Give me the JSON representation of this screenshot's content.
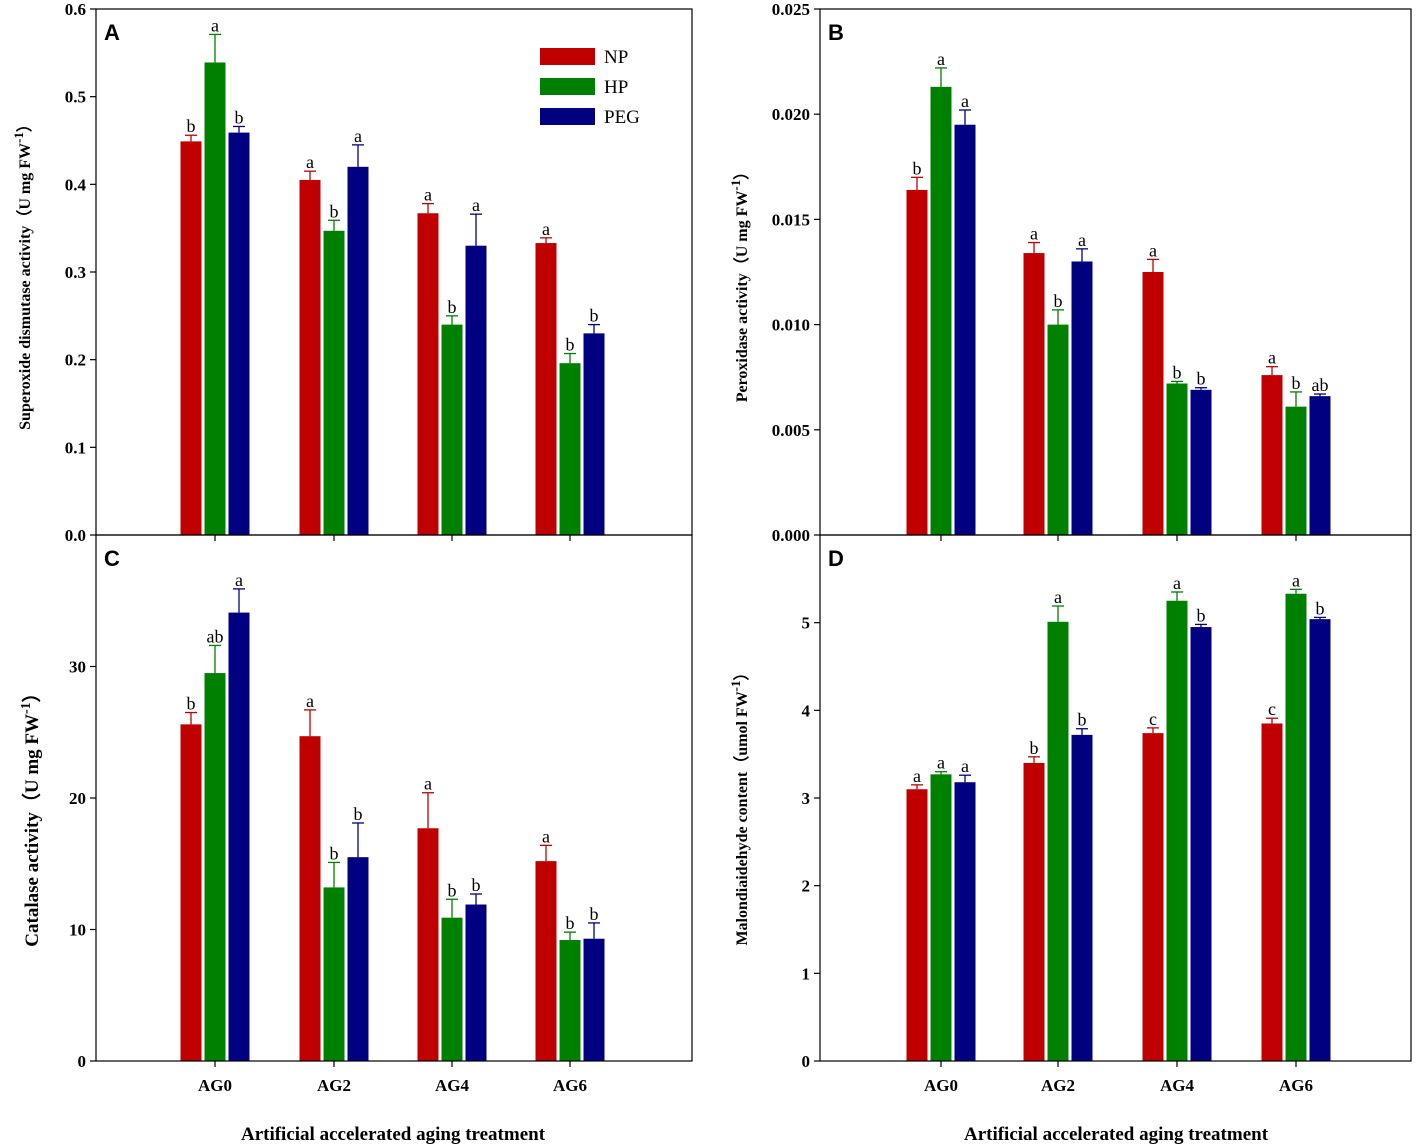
{
  "figure": {
    "shared_categories": [
      "AG0",
      "AG2",
      "AG4",
      "AG6"
    ],
    "x_axis_label": "Artificial accelerated aging treatment",
    "legend": [
      {
        "name": "NP",
        "color": "#c00000"
      },
      {
        "name": "HP",
        "color": "#008000"
      },
      {
        "name": "PEG",
        "color": "#000080"
      }
    ]
  },
  "chart_data": [
    {
      "id": "A",
      "type": "bar",
      "panel_label": "A",
      "title": "",
      "xlabel": "Artificial accelerated aging treatment",
      "ylabel": "Superoxide dismutase activity（U mg FW",
      "ylabel_sup": "-1",
      "ylabel_tail": "）",
      "categories": [
        "AG0",
        "AG2",
        "AG4",
        "AG6"
      ],
      "ylim": [
        0,
        0.6
      ],
      "yticks": [
        0.0,
        0.1,
        0.2,
        0.3,
        0.4,
        0.5,
        0.6
      ],
      "ytick_labels": [
        "0.0",
        "0.1",
        "0.2",
        "0.3",
        "0.4",
        "0.5",
        "0.6"
      ],
      "show_x_tick_labels": false,
      "legend": true,
      "series": [
        {
          "name": "NP",
          "color": "#c00000",
          "values": [
            0.449,
            0.405,
            0.367,
            0.333
          ],
          "errors": [
            0.007,
            0.01,
            0.011,
            0.006
          ],
          "letters": [
            "b",
            "a",
            "a",
            "a"
          ]
        },
        {
          "name": "HP",
          "color": "#008000",
          "values": [
            0.539,
            0.347,
            0.24,
            0.196
          ],
          "errors": [
            0.032,
            0.012,
            0.01,
            0.011
          ],
          "letters": [
            "a",
            "b",
            "b",
            "b"
          ]
        },
        {
          "name": "PEG",
          "color": "#000080",
          "values": [
            0.459,
            0.42,
            0.33,
            0.23
          ],
          "errors": [
            0.007,
            0.025,
            0.036,
            0.01
          ],
          "letters": [
            "b",
            "a",
            "a",
            "b"
          ]
        }
      ]
    },
    {
      "id": "B",
      "type": "bar",
      "panel_label": "B",
      "title": "",
      "xlabel": "Artificial accelerated aging treatment",
      "ylabel": "Peroxidase activity（U mg FW",
      "ylabel_sup": "-1",
      "ylabel_tail": "）",
      "categories": [
        "AG0",
        "AG2",
        "AG4",
        "AG6"
      ],
      "ylim": [
        0,
        0.025
      ],
      "yticks": [
        0.0,
        0.005,
        0.01,
        0.015,
        0.02,
        0.025
      ],
      "ytick_labels": [
        "0.000",
        "0.005",
        "0.010",
        "0.015",
        "0.020",
        "0.025"
      ],
      "show_x_tick_labels": false,
      "legend": false,
      "series": [
        {
          "name": "NP",
          "color": "#c00000",
          "values": [
            0.0164,
            0.0134,
            0.0125,
            0.0076
          ],
          "errors": [
            0.0006,
            0.0005,
            0.0006,
            0.0004
          ],
          "letters": [
            "b",
            "a",
            "a",
            "a"
          ]
        },
        {
          "name": "HP",
          "color": "#008000",
          "values": [
            0.0213,
            0.01,
            0.0072,
            0.0061
          ],
          "errors": [
            0.0009,
            0.0007,
            0.0001,
            0.0007
          ],
          "letters": [
            "a",
            "b",
            "b",
            "b"
          ]
        },
        {
          "name": "PEG",
          "color": "#000080",
          "values": [
            0.0195,
            0.013,
            0.0069,
            0.0066
          ],
          "errors": [
            0.0007,
            0.0006,
            0.0001,
            0.0001
          ],
          "letters": [
            "a",
            "a",
            "b",
            "ab"
          ]
        }
      ]
    },
    {
      "id": "C",
      "type": "bar",
      "panel_label": "C",
      "title": "",
      "xlabel": "Artificial accelerated aging treatment",
      "ylabel": "Catalase activity（U mg FW",
      "ylabel_sup": "-1",
      "ylabel_tail": "）",
      "categories": [
        "AG0",
        "AG2",
        "AG4",
        "AG6"
      ],
      "ylim": [
        0,
        40
      ],
      "yticks": [
        0,
        10,
        20,
        30
      ],
      "ytick_labels": [
        "0",
        "10",
        "20",
        "30"
      ],
      "show_x_tick_labels": true,
      "legend": false,
      "series": [
        {
          "name": "NP",
          "color": "#c00000",
          "values": [
            25.6,
            24.7,
            17.7,
            15.2
          ],
          "errors": [
            0.9,
            2.0,
            2.7,
            1.2
          ],
          "letters": [
            "b",
            "a",
            "a",
            "a"
          ]
        },
        {
          "name": "HP",
          "color": "#008000",
          "values": [
            29.5,
            13.2,
            10.9,
            9.2
          ],
          "errors": [
            2.1,
            1.9,
            1.4,
            0.6
          ],
          "letters": [
            "ab",
            "b",
            "b",
            "b"
          ]
        },
        {
          "name": "PEG",
          "color": "#000080",
          "values": [
            34.1,
            15.5,
            11.9,
            9.3
          ],
          "errors": [
            1.8,
            2.6,
            0.8,
            1.2
          ],
          "letters": [
            "a",
            "b",
            "b",
            "b"
          ]
        }
      ]
    },
    {
      "id": "D",
      "type": "bar",
      "panel_label": "D",
      "title": "",
      "xlabel": "Artificial accelerated aging treatment",
      "ylabel": "Malondiaidehyde content（umol FW",
      "ylabel_sup": "-1",
      "ylabel_tail": "）",
      "categories": [
        "AG0",
        "AG2",
        "AG4",
        "AG6"
      ],
      "ylim": [
        0,
        6
      ],
      "yticks": [
        0,
        1,
        2,
        3,
        4,
        5
      ],
      "ytick_labels": [
        "0",
        "1",
        "2",
        "3",
        "4",
        "5"
      ],
      "show_x_tick_labels": true,
      "legend": false,
      "series": [
        {
          "name": "NP",
          "color": "#c00000",
          "values": [
            3.1,
            3.4,
            3.74,
            3.85
          ],
          "errors": [
            0.05,
            0.07,
            0.06,
            0.06
          ],
          "letters": [
            "a",
            "b",
            "c",
            "c"
          ]
        },
        {
          "name": "HP",
          "color": "#008000",
          "values": [
            3.27,
            5.01,
            5.25,
            5.33
          ],
          "errors": [
            0.03,
            0.18,
            0.1,
            0.05
          ],
          "letters": [
            "a",
            "a",
            "a",
            "a"
          ]
        },
        {
          "name": "PEG",
          "color": "#000080",
          "values": [
            3.18,
            3.72,
            4.95,
            5.04
          ],
          "errors": [
            0.08,
            0.07,
            0.03,
            0.02
          ],
          "letters": [
            "a",
            "b",
            "b",
            "b"
          ]
        }
      ]
    }
  ]
}
